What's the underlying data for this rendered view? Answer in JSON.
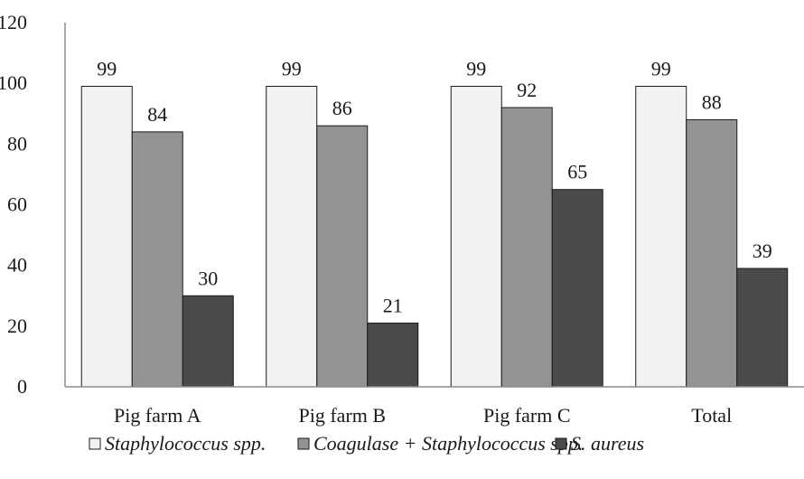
{
  "chart_data": {
    "type": "bar",
    "title": "",
    "xlabel": "",
    "ylabel": "",
    "ylim": [
      0,
      120
    ],
    "yticks": [
      0,
      20,
      40,
      60,
      80,
      100,
      120
    ],
    "grid": false,
    "legend_position": "bottom",
    "categories": [
      "Pig farm A",
      "Pig farm B",
      "Pig farm C",
      "Total"
    ],
    "series": [
      {
        "name": "Staphylococcus spp.",
        "color": "#f2f2f2",
        "values": [
          99,
          99,
          99,
          99
        ]
      },
      {
        "name": "Coagulase + Staphylococcus spp.",
        "color": "#939393",
        "values": [
          84,
          86,
          92,
          88
        ]
      },
      {
        "name": "S. aureus",
        "color": "#4a4a4a",
        "values": [
          30,
          21,
          65,
          39
        ]
      }
    ]
  }
}
